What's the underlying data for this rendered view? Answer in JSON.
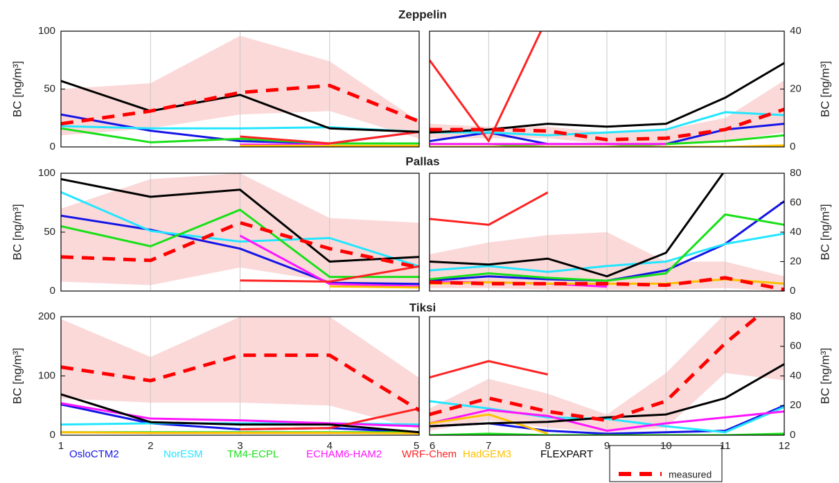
{
  "legend": [
    {
      "name": "OsloCTM2",
      "color": "#1414e6"
    },
    {
      "name": "NorESM",
      "color": "#22e6ff"
    },
    {
      "name": "TM4-ECPL",
      "color": "#18e018"
    },
    {
      "name": "ECHAM6-HAM2",
      "color": "#ff14ff"
    },
    {
      "name": "WRF-Chem",
      "color": "#ff2222"
    },
    {
      "name": "HadGEM3",
      "color": "#ffc000"
    },
    {
      "name": "FLEXPART",
      "color": "#000000"
    },
    {
      "name": "measured",
      "color": "#ff0000",
      "dashed": true
    }
  ],
  "chart_data": [
    {
      "type": "line",
      "title": "Zeppelin",
      "ylabel": "BC [ng/m³]",
      "x": [
        1,
        2,
        3,
        4,
        5
      ],
      "xlim": [
        1,
        5
      ],
      "xticks": [
        1,
        2,
        3,
        4,
        5
      ],
      "ylim": [
        0,
        100
      ],
      "yticks": [
        0,
        50,
        100
      ],
      "grid": true,
      "band_color": "#fbd9d9",
      "band": {
        "lower": [
          10,
          16,
          28,
          31,
          7
        ],
        "upper": [
          50,
          55,
          96,
          74,
          22
        ]
      },
      "series": [
        {
          "values": [
            28,
            14,
            5,
            3,
            13
          ]
        },
        {
          "values": [
            18,
            16,
            16,
            17,
            13
          ]
        },
        {
          "values": [
            16,
            4,
            7,
            3,
            3
          ]
        },
        {
          "values": [
            null,
            null,
            2,
            2,
            null
          ]
        },
        {
          "values": [
            null,
            null,
            9,
            3,
            13
          ]
        },
        {
          "values": [
            null,
            null,
            1,
            1,
            1
          ]
        },
        {
          "values": [
            57,
            31,
            45,
            16,
            13
          ]
        },
        {
          "values": [
            20,
            31,
            47,
            53,
            22
          ]
        }
      ]
    },
    {
      "type": "line",
      "ylabel": "BC [ng/m³]",
      "x": [
        6,
        7,
        8,
        9,
        10,
        11,
        12
      ],
      "xlim": [
        6,
        12
      ],
      "xticks": [
        6,
        7,
        8,
        9,
        10,
        11,
        12
      ],
      "ylim": [
        0,
        40
      ],
      "yticks": [
        0,
        20,
        40
      ],
      "grid": true,
      "band_color": "#fbd9d9",
      "band": {
        "lower": [
          3,
          3,
          3,
          1,
          1,
          2,
          5
        ],
        "upper": [
          8,
          7,
          7,
          5,
          6,
          10,
          23
        ]
      },
      "series": [
        {
          "values": [
            2,
            5,
            1,
            1,
            1,
            6,
            8
          ]
        },
        {
          "values": [
            5,
            5,
            4,
            5,
            6,
            12,
            11
          ]
        },
        {
          "values": [
            1,
            1,
            0,
            0,
            1,
            2,
            4
          ]
        },
        {
          "values": [
            1,
            1,
            1,
            1,
            1,
            null,
            null
          ]
        },
        {
          "values": [
            30,
            2,
            45,
            null,
            null,
            null,
            null
          ]
        },
        {
          "values": [
            0,
            0,
            0,
            0,
            0,
            0,
            0.5
          ]
        },
        {
          "values": [
            5,
            6,
            8,
            7,
            8,
            17,
            29
          ]
        },
        {
          "values": [
            6,
            6,
            5.5,
            2.5,
            3,
            6,
            13
          ]
        }
      ]
    },
    {
      "type": "line",
      "title": "Pallas",
      "ylabel": "BC [ng/m³]",
      "x": [
        1,
        2,
        3,
        4,
        5
      ],
      "xlim": [
        1,
        5
      ],
      "xticks": [
        1,
        2,
        3,
        4,
        5
      ],
      "ylim": [
        0,
        100
      ],
      "yticks": [
        0,
        50,
        100
      ],
      "grid": true,
      "band_color": "#fbd9d9",
      "band": {
        "lower": [
          8,
          5,
          20,
          8,
          3
        ],
        "upper": [
          70,
          95,
          100,
          62,
          58
        ]
      },
      "series": [
        {
          "values": [
            64,
            52,
            36,
            7,
            6
          ]
        },
        {
          "values": [
            84,
            51,
            42,
            45,
            21
          ]
        },
        {
          "values": [
            55,
            38,
            69,
            12,
            12
          ]
        },
        {
          "values": [
            null,
            null,
            47,
            6,
            4
          ]
        },
        {
          "values": [
            null,
            null,
            9,
            8,
            21
          ]
        },
        {
          "values": [
            null,
            null,
            null,
            4,
            3
          ]
        },
        {
          "values": [
            95,
            80,
            86,
            25,
            29
          ]
        },
        {
          "values": [
            29,
            26,
            58,
            36,
            20
          ]
        }
      ]
    },
    {
      "type": "line",
      "ylabel": "BC [ng/m³]",
      "x": [
        6,
        7,
        8,
        9,
        10,
        11,
        12
      ],
      "xlim": [
        6,
        12
      ],
      "xticks": [
        6,
        7,
        8,
        9,
        10,
        11,
        12
      ],
      "ylim": [
        0,
        80
      ],
      "yticks": [
        0,
        20,
        40,
        60,
        80
      ],
      "grid": true,
      "band_color": "#fbd9d9",
      "band": {
        "lower": [
          2,
          2,
          1,
          1,
          1,
          2,
          0
        ],
        "upper": [
          25,
          33,
          38,
          40,
          20,
          20,
          10
        ]
      },
      "series": [
        {
          "values": [
            7,
            10,
            8,
            7,
            14,
            32,
            61
          ]
        },
        {
          "values": [
            14,
            17,
            13,
            17,
            20,
            32,
            39
          ]
        },
        {
          "values": [
            8,
            12,
            9,
            7,
            12,
            52,
            45
          ]
        },
        {
          "values": [
            6,
            6,
            5,
            3,
            null,
            null,
            null
          ]
        },
        {
          "values": [
            49,
            45,
            67,
            null,
            null,
            null,
            null
          ]
        },
        {
          "values": [
            5,
            6,
            5,
            5,
            5,
            8,
            5
          ]
        },
        {
          "values": [
            20,
            18,
            22,
            10,
            26,
            82,
            null
          ]
        },
        {
          "values": [
            6,
            5,
            5,
            5,
            4,
            9,
            1
          ]
        }
      ]
    },
    {
      "type": "line",
      "title": "Tiksi",
      "ylabel": "BC [ng/m³]",
      "x": [
        1,
        2,
        3,
        4,
        5
      ],
      "xlim": [
        1,
        5
      ],
      "xticks": [
        1,
        2,
        3,
        4,
        5
      ],
      "ylim": [
        0,
        200
      ],
      "yticks": [
        0,
        100,
        200
      ],
      "grid": true,
      "band_color": "#fbd9d9",
      "xtick_labels": true,
      "band": {
        "lower": [
          62,
          55,
          55,
          50,
          10
        ],
        "upper": [
          196,
          132,
          200,
          200,
          97
        ]
      },
      "series": [
        {
          "values": [
            52,
            20,
            10,
            12,
            5
          ]
        },
        {
          "values": [
            18,
            20,
            20,
            20,
            18
          ]
        },
        {
          "values": [
            5,
            5,
            5,
            5,
            5
          ]
        },
        {
          "values": [
            54,
            28,
            25,
            20,
            15
          ]
        },
        {
          "values": [
            null,
            null,
            10,
            12,
            45
          ]
        },
        {
          "values": [
            5,
            4,
            4,
            4,
            3
          ]
        },
        {
          "values": [
            69,
            22,
            18,
            18,
            5
          ]
        },
        {
          "values": [
            115,
            92,
            135,
            135,
            42
          ]
        }
      ]
    },
    {
      "type": "line",
      "ylabel": "BC [ng/m³]",
      "x": [
        6,
        7,
        8,
        9,
        10,
        11,
        12
      ],
      "xlim": [
        6,
        12
      ],
      "xticks": [
        6,
        7,
        8,
        9,
        10,
        11,
        12
      ],
      "ylim": [
        0,
        80
      ],
      "yticks": [
        0,
        20,
        40,
        60,
        80
      ],
      "grid": true,
      "band_color": "#fbd9d9",
      "xtick_labels": true,
      "band": {
        "lower": [
          3,
          10,
          5,
          2,
          5,
          42,
          37
        ],
        "upper": [
          18,
          38,
          28,
          14,
          42,
          82,
          82
        ]
      },
      "series": [
        {
          "values": [
            6,
            8,
            3,
            1,
            2,
            3,
            20
          ]
        },
        {
          "values": [
            23,
            18,
            12,
            11,
            6,
            2,
            19
          ]
        },
        {
          "values": [
            0,
            1,
            0,
            0,
            0,
            0,
            1
          ]
        },
        {
          "values": [
            8,
            17,
            13,
            3,
            8,
            12,
            16
          ]
        },
        {
          "values": [
            39,
            50,
            41,
            null,
            null,
            null,
            null
          ]
        },
        {
          "values": [
            8,
            14,
            1,
            null,
            null,
            null,
            2
          ]
        },
        {
          "values": [
            6,
            8,
            9,
            12,
            14,
            25,
            48
          ]
        },
        {
          "values": [
            14,
            25,
            16,
            10,
            23,
            62,
            95
          ]
        }
      ]
    }
  ]
}
